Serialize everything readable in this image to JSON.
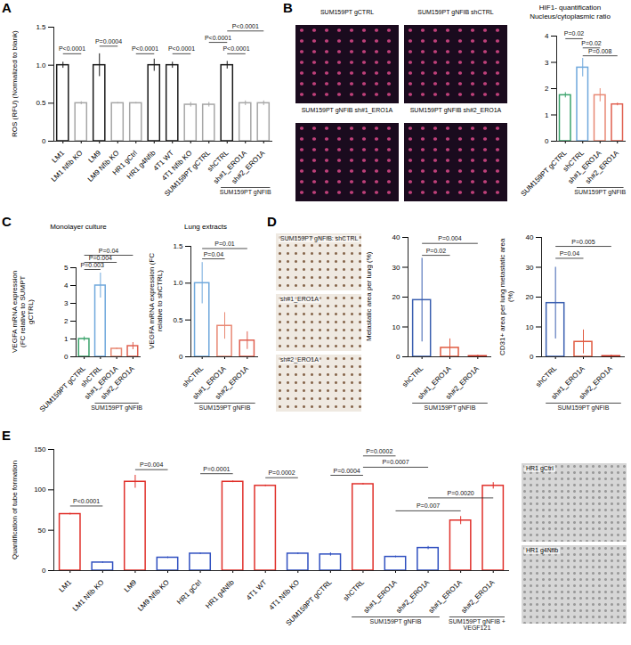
{
  "chart_data": [
    {
      "panel": "A",
      "type": "bar",
      "ylabel": "ROS (RFU) (Normalized to blank)",
      "grid": false,
      "categories": [
        "LM1",
        "LM1 Nfib KO",
        "LM9",
        "LM9 Nfib KO",
        "HR1 gCtrl",
        "HR1 g4Nfib",
        "4T1 WT",
        "4T1 Nfib KO",
        "SUM159PT gCTRL",
        "shCTRL",
        "sh#1_ERO1A",
        "sh#2_ERO1A"
      ],
      "category_groups": [
        null,
        null,
        null,
        null,
        null,
        null,
        null,
        null,
        null,
        "SUM159PT gNFIB",
        "SUM159PT gNFIB",
        "SUM159PT gNFIB"
      ],
      "values": [
        1.0,
        0.5,
        1.0,
        0.5,
        0.5,
        1.0,
        1.0,
        0.48,
        0.48,
        1.0,
        0.5,
        0.5
      ],
      "errors": [
        0.04,
        0.02,
        0.15,
        0.01,
        0.01,
        0.08,
        0.04,
        0.03,
        0.03,
        0.05,
        0.03,
        0.03
      ],
      "colors": [
        "#1a1a1a",
        "#a6a6a6",
        "#1a1a1a",
        "#a6a6a6",
        "#a6a6a6",
        "#1a1a1a",
        "#1a1a1a",
        "#a6a6a6",
        "#a6a6a6",
        "#1a1a1a",
        "#a6a6a6",
        "#a6a6a6"
      ],
      "ylim": [
        0,
        1.5
      ],
      "yticks": [
        0,
        0.5,
        {
          "value": 1,
          "label": "1.0"
        },
        1.5
      ],
      "annotations": [
        {
          "text": "P<0.0001",
          "from": 0,
          "to": 1,
          "y": 1.15
        },
        {
          "text": "P=0.0004",
          "from": 2,
          "to": 3,
          "y": 1.25
        },
        {
          "text": "P<0.0001",
          "from": 4,
          "to": 5,
          "y": 1.15
        },
        {
          "text": "P<0.0001",
          "from": 6,
          "to": 7,
          "y": 1.15
        },
        {
          "text": "P<0.0001",
          "from": 8,
          "to": 9,
          "y": 1.3
        },
        {
          "text": "P<0.0001",
          "from": 9,
          "to": 11,
          "y": 1.45
        },
        {
          "text": "P<0.0001",
          "from": 9,
          "to": 10,
          "y": 1.15
        }
      ]
    },
    {
      "panel": "B",
      "type": "bar",
      "title": "HIF1- quantification",
      "subtitle": "Nucleus/cytoplasmic ratio",
      "grid": false,
      "categories": [
        "SUM159PT gCTRL",
        "shCTRL",
        "sh#1_ERO1A",
        "sh#2_ERO1A"
      ],
      "category_groups": [
        null,
        "SUM159PT gNFIB",
        "SUM159PT gNFIB",
        "SUM159PT gNFIB"
      ],
      "values": [
        1.75,
        2.8,
        1.75,
        1.4
      ],
      "errors": [
        0.1,
        0.35,
        0.25,
        0.05
      ],
      "colors": [
        "#3aa36b",
        "#6fa8dc",
        "#e88873",
        "#e06050"
      ],
      "ylim": [
        0,
        4
      ],
      "yticks": [
        0,
        1,
        2,
        3,
        4
      ],
      "annotations": [
        {
          "text": "P=0.02",
          "from": 0,
          "to": 1,
          "y": 3.9
        },
        {
          "text": "P=0.02",
          "from": 1,
          "to": 2,
          "y": 3.55
        },
        {
          "text": "P=0.008",
          "from": 1,
          "to": 3,
          "y": 3.25
        }
      ]
    },
    {
      "panel": "C",
      "type": "bar",
      "title": "Monolayer culture",
      "ylabel": "VEGFA mRNA expression (FC relative to SUMPT gCTRL)",
      "grid": false,
      "categories": [
        "SUM159PT gCTRL",
        "shCTRL",
        "sh#1_ERO1A",
        "sh#2_ERO1A"
      ],
      "category_groups": [
        null,
        "SUM159PT gNFIB",
        "SUM159PT gNFIB",
        "SUM159PT gNFIB"
      ],
      "values": [
        1.0,
        4.0,
        0.45,
        0.6
      ],
      "errors": [
        0.12,
        0.7,
        0.05,
        0.2
      ],
      "colors": [
        "#3aa36b",
        "#6fa8dc",
        "#e88873",
        "#e06050"
      ],
      "ylim": [
        0,
        5
      ],
      "yticks": [
        0,
        1,
        2,
        3,
        4,
        5
      ],
      "annotations": [
        {
          "text": "P=0.003",
          "from": 0,
          "to": 1,
          "y": 4.9
        },
        {
          "text": "P=0.004",
          "from": 0,
          "to": 2,
          "y": 5.3
        },
        {
          "text": "P=0.04",
          "from": 0,
          "to": 3,
          "y": 5.7
        }
      ]
    },
    {
      "panel": "C",
      "type": "bar",
      "title": "Lung extracts",
      "ylabel": "VEGFA mRNA expression (FC relative to shCTRL)",
      "grid": false,
      "categories": [
        "shCTRL",
        "sh#1_ERO1A",
        "sh#2_ERO1A"
      ],
      "category_groups": [
        "SUM159PT gNFIB",
        "SUM159PT gNFIB",
        "SUM159PT gNFIB"
      ],
      "values": [
        1.0,
        0.42,
        0.22
      ],
      "errors": [
        0.28,
        0.18,
        0.12
      ],
      "colors": [
        "#6fa8dc",
        "#e88873",
        "#e06050"
      ],
      "ylim": [
        0,
        1.5
      ],
      "yticks": [
        0,
        0.5,
        {
          "value": 1,
          "label": "1.0"
        },
        1.5
      ],
      "annotations": [
        {
          "text": "P=0.04",
          "from": 0,
          "to": 1,
          "y": 1.33
        },
        {
          "text": "P=0.01",
          "from": 0,
          "to": 2,
          "y": 1.47
        }
      ]
    },
    {
      "panel": "D",
      "type": "bar",
      "ylabel": "Metastatic area per lung (%)",
      "grid": false,
      "categories": [
        "shCTRL",
        "sh#1_ERO1A",
        "sh#2_ERO1A"
      ],
      "category_groups": [
        "SUM159PT gNFIB",
        "SUM159PT gNFIB",
        "SUM159PT gNFIB"
      ],
      "values": [
        19,
        3,
        0.2
      ],
      "errors": [
        14,
        3,
        0.3
      ],
      "colors": [
        "#3a5fb0",
        "#e05a40",
        "#d03020"
      ],
      "ylim": [
        0,
        40
      ],
      "yticks": [
        0,
        10,
        20,
        30,
        40
      ],
      "annotations": [
        {
          "text": "P=0.02",
          "from": 0,
          "to": 1,
          "y": 34
        },
        {
          "text": "P=0.004",
          "from": 0,
          "to": 2,
          "y": 38
        }
      ]
    },
    {
      "panel": "D",
      "type": "bar",
      "ylabel": "CD31+ area per lung metastatic area (%)",
      "grid": false,
      "categories": [
        "shCTRL",
        "sh#1_ERO1A",
        "sh#2_ERO1A"
      ],
      "category_groups": [
        "SUM159PT gNFIB",
        "SUM159PT gNFIB",
        "SUM159PT gNFIB"
      ],
      "values": [
        18,
        5,
        0.2
      ],
      "errors": [
        12,
        4,
        0.3
      ],
      "colors": [
        "#3a5fb0",
        "#e05a40",
        "#d03020"
      ],
      "ylim": [
        0,
        40
      ],
      "yticks": [
        0,
        10,
        20,
        30,
        40
      ],
      "annotations": [
        {
          "text": "P=0.04",
          "from": 0,
          "to": 1,
          "y": 33
        },
        {
          "text": "P=0.005",
          "from": 0,
          "to": 2,
          "y": 37
        }
      ]
    },
    {
      "panel": "E",
      "type": "bar",
      "ylabel": "Quantification of tube formation",
      "grid": false,
      "categories": [
        "LM1",
        "LM1 Nfib KO",
        "LM9",
        "LM9 Nfib KO",
        "HR1 gCtrl",
        "HR1 g4Nfib",
        "4T1 WT",
        "4T1 Nfib KO",
        "SUM159PT gCTRL",
        "shCTRL",
        "sh#1_ERO1A",
        "sh#2_ERO1A",
        "sh#1_ERO1A",
        "sh#2_ERO1A"
      ],
      "category_groups": [
        null,
        null,
        null,
        null,
        null,
        null,
        null,
        null,
        null,
        "SUM159PT gNFIB",
        "SUM159PT gNFIB",
        "SUM159PT gNFIB",
        "SUM159PT gNFIB + VEGF121",
        "SUM159PT gNFIB + VEGF121"
      ],
      "values": [
        70,
        10,
        110,
        16,
        21,
        110,
        105,
        21,
        20,
        107,
        17,
        28,
        62,
        105
      ],
      "errors": [
        1,
        1,
        8,
        1,
        1,
        1,
        1,
        1,
        2,
        1,
        1,
        2,
        5,
        4
      ],
      "colors": [
        "#e0302a",
        "#3050c0",
        "#e0302a",
        "#3050c0",
        "#3050c0",
        "#e0302a",
        "#e0302a",
        "#3050c0",
        "#3050c0",
        "#e0302a",
        "#3050c0",
        "#3050c0",
        "#e0302a",
        "#e0302a"
      ],
      "ylim": [
        0,
        150
      ],
      "yticks": [
        0,
        50,
        100,
        150
      ],
      "annotations": [
        {
          "text": "P<0.0001",
          "from": 0,
          "to": 1,
          "y": 80
        },
        {
          "text": "P=0.004",
          "from": 2,
          "to": 3,
          "y": 125
        },
        {
          "text": "P=0.0001",
          "from": 4,
          "to": 5,
          "y": 120
        },
        {
          "text": "P=0.0002",
          "from": 6,
          "to": 7,
          "y": 115
        },
        {
          "text": "P=0.0004",
          "from": 8,
          "to": 9,
          "y": 118
        },
        {
          "text": "P=0.0002",
          "from": 9,
          "to": 10,
          "y": 142
        },
        {
          "text": "P=0.0007",
          "from": 9,
          "to": 11,
          "y": 128
        },
        {
          "text": "P=0.007",
          "from": 10,
          "to": 12,
          "y": 74
        },
        {
          "text": "P=0.0020",
          "from": 11,
          "to": 13,
          "y": 90
        }
      ]
    }
  ],
  "images": [
    {
      "panel": "B",
      "labels": [
        "SUM159PT gCTRL",
        "SUM159PT gNFIB shCTRL",
        "SUM159PT gNFIB sh#1_ERO1A",
        "SUM159PT gNFIB sh#2_ERO1A"
      ]
    },
    {
      "panel": "D",
      "labels": [
        "SUM159PT gNFIB: shCTRL",
        "sh#1_ERO1A",
        "sh#2_ERO1A"
      ]
    },
    {
      "panel": "E",
      "labels": [
        "HR1 gCtrl",
        "HR1 g4Nfib"
      ]
    }
  ]
}
